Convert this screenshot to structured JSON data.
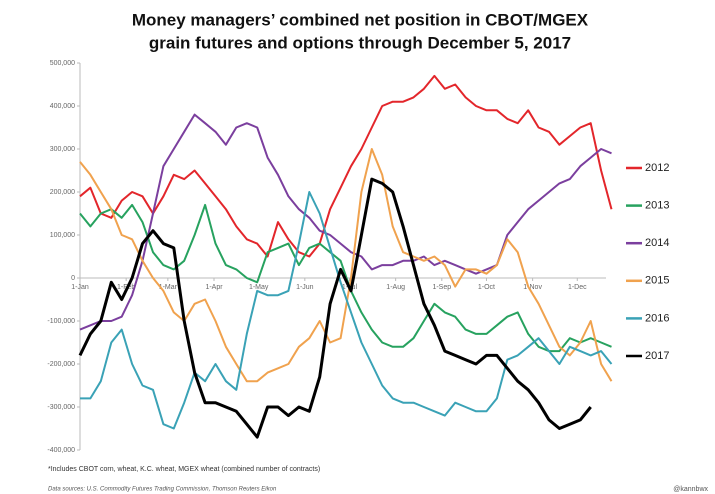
{
  "chart_data": {
    "type": "line",
    "title": [
      "Money managers’ combined net position in CBOT/MGEX",
      "grain futures and options through December 5, 2017"
    ],
    "footnote": "*Includes CBOT corn, wheat, K.C. wheat, MGEX wheat (combined number of contracts)",
    "source": "Data sources: U.S. Commodity Futures Trading Commission, Thomson Reuters Eikon",
    "credit": "@kannbwx",
    "legend": "right",
    "xlim": [
      0,
      360
    ],
    "x": [
      0,
      7,
      14,
      21,
      28,
      35,
      42,
      49,
      56,
      63,
      70,
      77,
      84,
      91,
      98,
      105,
      112,
      119,
      126,
      133,
      140,
      147,
      154,
      161,
      168,
      175,
      182,
      189,
      196,
      203,
      210,
      217,
      224,
      231,
      238,
      245,
      252,
      259,
      266,
      273,
      280,
      287,
      294,
      301,
      308,
      315,
      322,
      329,
      336,
      343,
      350,
      357
    ],
    "xticks": [
      {
        "value": 0,
        "label": "1-Jan"
      },
      {
        "value": 31,
        "label": "1-Feb"
      },
      {
        "value": 59,
        "label": "1-Mar"
      },
      {
        "value": 90,
        "label": "1-Apr"
      },
      {
        "value": 120,
        "label": "1-May"
      },
      {
        "value": 151,
        "label": "1-Jun"
      },
      {
        "value": 181,
        "label": "1-Jul"
      },
      {
        "value": 212,
        "label": "1-Aug"
      },
      {
        "value": 243,
        "label": "1-Sep"
      },
      {
        "value": 273,
        "label": "1-Oct"
      },
      {
        "value": 304,
        "label": "1-Nov"
      },
      {
        "value": 334,
        "label": "1-Dec"
      }
    ],
    "ylim": [
      -400000,
      500000
    ],
    "yticks": [
      {
        "value": 500000,
        "label": "500,000"
      },
      {
        "value": 400000,
        "label": "400,000"
      },
      {
        "value": 300000,
        "label": "300,000"
      },
      {
        "value": 200000,
        "label": "200,000"
      },
      {
        "value": 100000,
        "label": "100,000"
      },
      0,
      {
        "value": -100000,
        "label": "-100,000"
      },
      {
        "value": -200000,
        "label": "-200,000"
      },
      {
        "value": -300000,
        "label": "-300,000"
      },
      {
        "value": -400000,
        "label": "-400,000"
      }
    ],
    "series": [
      {
        "name": "2012",
        "color": "#e3262b",
        "values": [
          190000,
          210000,
          150000,
          140000,
          180000,
          200000,
          190000,
          150000,
          190000,
          240000,
          230000,
          250000,
          220000,
          190000,
          160000,
          120000,
          90000,
          80000,
          50000,
          130000,
          90000,
          60000,
          50000,
          80000,
          160000,
          210000,
          260000,
          300000,
          350000,
          400000,
          410000,
          410000,
          420000,
          440000,
          470000,
          440000,
          450000,
          420000,
          400000,
          390000,
          390000,
          370000,
          360000,
          390000,
          350000,
          340000,
          310000,
          330000,
          350000,
          360000,
          250000,
          160000
        ]
      },
      {
        "name": "2013",
        "color": "#27a25f",
        "values": [
          150000,
          120000,
          150000,
          160000,
          140000,
          170000,
          130000,
          60000,
          30000,
          20000,
          40000,
          100000,
          170000,
          80000,
          30000,
          20000,
          0,
          -10000,
          60000,
          70000,
          80000,
          30000,
          70000,
          80000,
          60000,
          40000,
          -30000,
          -80000,
          -120000,
          -150000,
          -160000,
          -160000,
          -140000,
          -100000,
          -60000,
          -80000,
          -90000,
          -120000,
          -130000,
          -130000,
          -110000,
          -90000,
          -80000,
          -130000,
          -160000,
          -170000,
          -170000,
          -140000,
          -150000,
          -140000,
          -150000,
          -160000
        ]
      },
      {
        "name": "2014",
        "color": "#7b3f9e",
        "values": [
          -120000,
          -110000,
          -100000,
          -100000,
          -90000,
          -40000,
          40000,
          150000,
          260000,
          300000,
          340000,
          380000,
          360000,
          340000,
          310000,
          350000,
          360000,
          350000,
          280000,
          240000,
          190000,
          160000,
          140000,
          110000,
          100000,
          80000,
          60000,
          50000,
          20000,
          30000,
          30000,
          40000,
          40000,
          50000,
          30000,
          40000,
          30000,
          20000,
          10000,
          20000,
          30000,
          100000,
          130000,
          160000,
          180000,
          200000,
          220000,
          230000,
          260000,
          280000,
          300000,
          290000
        ]
      },
      {
        "name": "2015",
        "color": "#f0a24e",
        "values": [
          270000,
          240000,
          200000,
          160000,
          100000,
          90000,
          40000,
          0,
          -30000,
          -80000,
          -100000,
          -60000,
          -50000,
          -100000,
          -160000,
          -200000,
          -240000,
          -240000,
          -220000,
          -210000,
          -200000,
          -160000,
          -140000,
          -100000,
          -150000,
          -140000,
          0,
          200000,
          300000,
          240000,
          120000,
          60000,
          50000,
          40000,
          50000,
          30000,
          -20000,
          20000,
          20000,
          10000,
          30000,
          90000,
          60000,
          -20000,
          -60000,
          -110000,
          -160000,
          -180000,
          -150000,
          -100000,
          -200000,
          -240000
        ]
      },
      {
        "name": "2016",
        "color": "#3aa2b6",
        "values": [
          -280000,
          -280000,
          -240000,
          -150000,
          -120000,
          -200000,
          -250000,
          -260000,
          -340000,
          -350000,
          -290000,
          -220000,
          -240000,
          -200000,
          -240000,
          -260000,
          -130000,
          -30000,
          -40000,
          -40000,
          -30000,
          80000,
          200000,
          150000,
          70000,
          -10000,
          -80000,
          -150000,
          -200000,
          -250000,
          -280000,
          -290000,
          -290000,
          -300000,
          -310000,
          -320000,
          -290000,
          -300000,
          -310000,
          -310000,
          -280000,
          -190000,
          -180000,
          -160000,
          -140000,
          -170000,
          -200000,
          -160000,
          -170000,
          -180000,
          -170000,
          -200000
        ]
      },
      {
        "name": "2017",
        "color": "#000000",
        "values": [
          -180000,
          -130000,
          -100000,
          -10000,
          -50000,
          0,
          80000,
          110000,
          80000,
          70000,
          -100000,
          -220000,
          -290000,
          -290000,
          -300000,
          -310000,
          -340000,
          -370000,
          -300000,
          -300000,
          -320000,
          -300000,
          -310000,
          -230000,
          -60000,
          20000,
          -30000,
          100000,
          230000,
          220000,
          200000,
          120000,
          30000,
          -60000,
          -110000,
          -170000,
          -180000,
          -190000,
          -200000,
          -180000,
          -180000,
          -210000,
          -240000,
          -260000,
          -290000,
          -330000,
          -350000,
          -340000,
          -330000,
          -300000,
          null,
          null
        ]
      }
    ]
  }
}
